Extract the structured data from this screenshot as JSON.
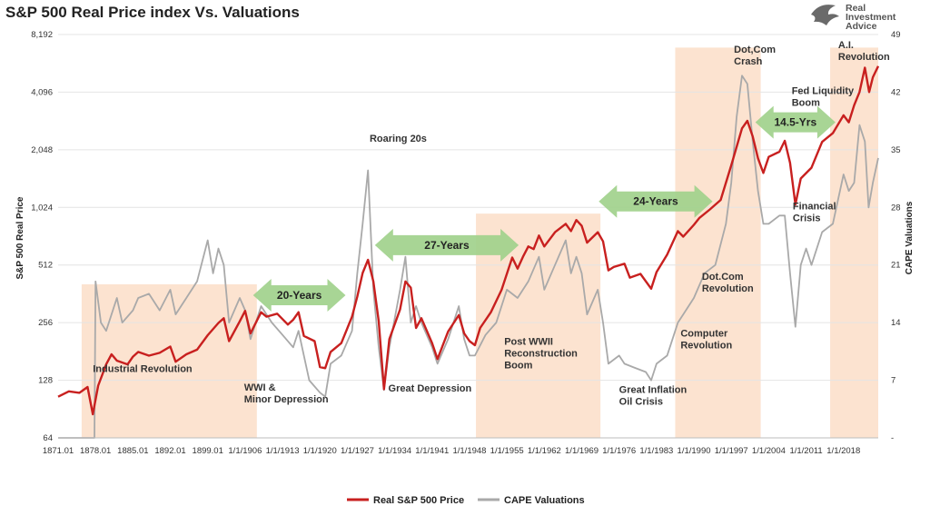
{
  "chart_data": {
    "type": "line",
    "title": "S&P 500 Real Price index Vs. Valuations",
    "ylabel_left": "S&P 500 Real Price",
    "ylabel_right": "CAPE Valuations",
    "y_left_scale": "log2",
    "y_left_range": [
      64,
      8192
    ],
    "y_left_ticks": [
      "64",
      "128",
      "256",
      "512",
      "1,024",
      "2,048",
      "4,096",
      "8,192"
    ],
    "y_right_range": [
      0,
      49
    ],
    "y_right_ticks": [
      "-",
      "7",
      "14",
      "21",
      "28",
      "35",
      "42",
      "49"
    ],
    "x_range": [
      1871.0,
      2024.5
    ],
    "x_ticks": [
      "1871.01",
      "1878.01",
      "1885.01",
      "1892.01",
      "1899.01",
      "1/1/1906",
      "1/1/1913",
      "1/1/1920",
      "1/1/1927",
      "1/1/1934",
      "1/1/1941",
      "1/1/1948",
      "1/1/1955",
      "1/1/1962",
      "1/1/1969",
      "1/1/1976",
      "1/1/1983",
      "1/1/1990",
      "1/1/1997",
      "1/1/2004",
      "1/1/2011",
      "1/1/2018"
    ],
    "grid": true,
    "legend_position": "bottom",
    "series": [
      {
        "name": "Real S&P 500 Price",
        "color": "#c8201f",
        "axis": "left",
        "points": [
          [
            1871,
            105
          ],
          [
            1873,
            112
          ],
          [
            1875,
            110
          ],
          [
            1876.5,
            118
          ],
          [
            1877.5,
            85
          ],
          [
            1878.5,
            120
          ],
          [
            1880,
            155
          ],
          [
            1881,
            175
          ],
          [
            1882,
            162
          ],
          [
            1884,
            155
          ],
          [
            1885,
            170
          ],
          [
            1886,
            180
          ],
          [
            1888,
            172
          ],
          [
            1890,
            178
          ],
          [
            1892,
            192
          ],
          [
            1893,
            160
          ],
          [
            1895,
            175
          ],
          [
            1897,
            185
          ],
          [
            1899,
            220
          ],
          [
            1901,
            255
          ],
          [
            1902,
            270
          ],
          [
            1903,
            205
          ],
          [
            1905,
            260
          ],
          [
            1906,
            295
          ],
          [
            1907,
            225
          ],
          [
            1909,
            290
          ],
          [
            1910,
            275
          ],
          [
            1912,
            285
          ],
          [
            1914,
            250
          ],
          [
            1915,
            265
          ],
          [
            1916,
            290
          ],
          [
            1917,
            218
          ],
          [
            1919,
            205
          ],
          [
            1920,
            150
          ],
          [
            1921,
            148
          ],
          [
            1922,
            180
          ],
          [
            1924,
            200
          ],
          [
            1926,
            275
          ],
          [
            1927,
            350
          ],
          [
            1928,
            465
          ],
          [
            1929,
            545
          ],
          [
            1930,
            420
          ],
          [
            1931,
            260
          ],
          [
            1932,
            115
          ],
          [
            1933,
            210
          ],
          [
            1935,
            300
          ],
          [
            1936,
            420
          ],
          [
            1937,
            390
          ],
          [
            1938,
            240
          ],
          [
            1939,
            270
          ],
          [
            1941,
            200
          ],
          [
            1942,
            165
          ],
          [
            1944,
            230
          ],
          [
            1946,
            280
          ],
          [
            1947,
            225
          ],
          [
            1948,
            205
          ],
          [
            1949,
            195
          ],
          [
            1950,
            240
          ],
          [
            1952,
            290
          ],
          [
            1954,
            380
          ],
          [
            1956,
            560
          ],
          [
            1957,
            490
          ],
          [
            1958,
            565
          ],
          [
            1959,
            640
          ],
          [
            1960,
            620
          ],
          [
            1961,
            730
          ],
          [
            1962,
            640
          ],
          [
            1964,
            760
          ],
          [
            1966,
            840
          ],
          [
            1967,
            770
          ],
          [
            1968,
            880
          ],
          [
            1969,
            820
          ],
          [
            1970,
            670
          ],
          [
            1972,
            760
          ],
          [
            1973,
            680
          ],
          [
            1974,
            480
          ],
          [
            1975,
            500
          ],
          [
            1977,
            520
          ],
          [
            1978,
            440
          ],
          [
            1980,
            460
          ],
          [
            1982,
            385
          ],
          [
            1983,
            470
          ],
          [
            1985,
            580
          ],
          [
            1987,
            770
          ],
          [
            1988,
            720
          ],
          [
            1990,
            830
          ],
          [
            1991,
            900
          ],
          [
            1993,
            1000
          ],
          [
            1995,
            1120
          ],
          [
            1997,
            1700
          ],
          [
            1999,
            2650
          ],
          [
            2000,
            2900
          ],
          [
            2001,
            2400
          ],
          [
            2002,
            1850
          ],
          [
            2003,
            1550
          ],
          [
            2004,
            1880
          ],
          [
            2006,
            2000
          ],
          [
            2007,
            2280
          ],
          [
            2008,
            1750
          ],
          [
            2009,
            1060
          ],
          [
            2010,
            1450
          ],
          [
            2012,
            1650
          ],
          [
            2014,
            2250
          ],
          [
            2016,
            2500
          ],
          [
            2018,
            3100
          ],
          [
            2019,
            2850
          ],
          [
            2020,
            3500
          ],
          [
            2021,
            4100
          ],
          [
            2022,
            5500
          ],
          [
            2022.8,
            4100
          ],
          [
            2023.5,
            4900
          ],
          [
            2024.5,
            5600
          ]
        ]
      },
      {
        "name": "CAPE Valuations",
        "color": "#a9a9a9",
        "axis": "right",
        "points": [
          [
            1871,
            0
          ],
          [
            1877.8,
            0
          ],
          [
            1878,
            19
          ],
          [
            1879,
            14
          ],
          [
            1880,
            13
          ],
          [
            1882,
            17
          ],
          [
            1883,
            14
          ],
          [
            1885,
            15.5
          ],
          [
            1886,
            17
          ],
          [
            1888,
            17.5
          ],
          [
            1890,
            15.5
          ],
          [
            1892,
            18
          ],
          [
            1893,
            15
          ],
          [
            1895,
            17
          ],
          [
            1897,
            19
          ],
          [
            1899,
            24
          ],
          [
            1900,
            20
          ],
          [
            1901,
            23
          ],
          [
            1902,
            21
          ],
          [
            1903,
            14
          ],
          [
            1905,
            17
          ],
          [
            1906,
            15.5
          ],
          [
            1907,
            12
          ],
          [
            1909,
            16
          ],
          [
            1911,
            14
          ],
          [
            1913,
            12.5
          ],
          [
            1915,
            11
          ],
          [
            1916,
            13
          ],
          [
            1918,
            7
          ],
          [
            1920,
            5.5
          ],
          [
            1921,
            5
          ],
          [
            1922,
            9
          ],
          [
            1924,
            10
          ],
          [
            1926,
            13
          ],
          [
            1927,
            20
          ],
          [
            1928,
            26
          ],
          [
            1929,
            32.5
          ],
          [
            1930,
            18
          ],
          [
            1931,
            11
          ],
          [
            1932,
            5.8
          ],
          [
            1933,
            11
          ],
          [
            1935,
            18
          ],
          [
            1936,
            22
          ],
          [
            1937,
            14
          ],
          [
            1938,
            16
          ],
          [
            1939,
            14
          ],
          [
            1941,
            11
          ],
          [
            1942,
            9
          ],
          [
            1944,
            12
          ],
          [
            1946,
            16
          ],
          [
            1947,
            12
          ],
          [
            1948,
            10
          ],
          [
            1949,
            10
          ],
          [
            1951,
            12.5
          ],
          [
            1953,
            14
          ],
          [
            1955,
            18
          ],
          [
            1957,
            17
          ],
          [
            1959,
            19
          ],
          [
            1961,
            22
          ],
          [
            1962,
            18
          ],
          [
            1964,
            21
          ],
          [
            1966,
            24
          ],
          [
            1967,
            20
          ],
          [
            1968,
            22
          ],
          [
            1969,
            20
          ],
          [
            1970,
            15
          ],
          [
            1972,
            18
          ],
          [
            1973,
            14
          ],
          [
            1974,
            9
          ],
          [
            1976,
            10
          ],
          [
            1977,
            9
          ],
          [
            1979,
            8.5
          ],
          [
            1981,
            8
          ],
          [
            1982,
            7
          ],
          [
            1983,
            9
          ],
          [
            1985,
            10
          ],
          [
            1987,
            14
          ],
          [
            1988,
            15
          ],
          [
            1990,
            17
          ],
          [
            1992,
            20
          ],
          [
            1994,
            21
          ],
          [
            1996,
            26
          ],
          [
            1997,
            31
          ],
          [
            1998,
            39
          ],
          [
            1999,
            44
          ],
          [
            2000,
            43
          ],
          [
            2001,
            36
          ],
          [
            2002,
            30
          ],
          [
            2003,
            26
          ],
          [
            2004,
            26
          ],
          [
            2006,
            27
          ],
          [
            2007,
            27
          ],
          [
            2008,
            20
          ],
          [
            2009,
            13.5
          ],
          [
            2010,
            21
          ],
          [
            2011,
            23
          ],
          [
            2012,
            21
          ],
          [
            2014,
            25
          ],
          [
            2016,
            26
          ],
          [
            2018,
            32
          ],
          [
            2019,
            30
          ],
          [
            2020,
            31
          ],
          [
            2021,
            38
          ],
          [
            2022,
            36
          ],
          [
            2022.7,
            28
          ],
          [
            2023.5,
            31
          ],
          [
            2024.5,
            34
          ]
        ]
      }
    ],
    "shaded_regions": [
      {
        "x_start": 1875.4,
        "x_end": 1908.2,
        "y_top": 406
      },
      {
        "x_start": 1949.2,
        "x_end": 1972.5,
        "y_top": 950
      },
      {
        "x_start": 1986.5,
        "x_end": 2002.5,
        "y_top": 7000
      },
      {
        "x_start": 2015.5,
        "x_end": 2024.5,
        "y_top": 7000
      }
    ],
    "period_arrows": [
      {
        "label": "20-Years",
        "x_start": 1907.5,
        "x_end": 1924.8,
        "y": 356
      },
      {
        "label": "27-Years",
        "x_start": 1930.3,
        "x_end": 1957.2,
        "y": 650
      },
      {
        "label": "24-Years",
        "x_start": 1972.2,
        "x_end": 1993.5,
        "y": 1100
      },
      {
        "label": "14.5-Yrs",
        "x_start": 2001.5,
        "x_end": 2016.5,
        "y": 2850
      }
    ],
    "annotations": [
      {
        "lines": [
          "Roaring 20s"
        ],
        "x": 1929.3,
        "y": 2260
      },
      {
        "lines": [
          "Industrial Revolution"
        ],
        "x": 1877.5,
        "y": 141
      },
      {
        "lines": [
          "WWI &",
          "Minor Depression"
        ],
        "x": 1905.8,
        "y": 113
      },
      {
        "lines": [
          "Great Depression"
        ],
        "x": 1932.8,
        "y": 112
      },
      {
        "lines": [
          "Post WWII",
          "Reconstruction",
          "Boom"
        ],
        "x": 1954.5,
        "y": 196
      },
      {
        "lines": [
          "Great Inflation",
          "Oil Crisis"
        ],
        "x": 1976,
        "y": 110
      },
      {
        "lines": [
          "Computer",
          "Revolution"
        ],
        "x": 1987.5,
        "y": 217
      },
      {
        "lines": [
          "Dot.Com",
          "Revolution"
        ],
        "x": 1991.5,
        "y": 428
      },
      {
        "lines": [
          "Dot,Com",
          "Crash"
        ],
        "x": 1997.5,
        "y": 6600
      },
      {
        "lines": [
          "Fed Liquidity",
          "Boom"
        ],
        "x": 2008.3,
        "y": 4000
      },
      {
        "lines": [
          "Financial",
          "Crisis"
        ],
        "x": 2008.5,
        "y": 1000
      },
      {
        "lines": [
          "A.I.",
          "Revolution"
        ],
        "x": 2017,
        "y": 6950
      }
    ]
  },
  "brand": {
    "lines": [
      "Real",
      "Investment",
      "Advice"
    ]
  }
}
